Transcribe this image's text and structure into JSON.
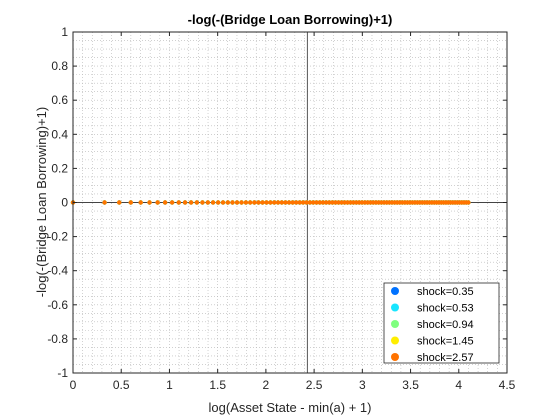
{
  "chart_data": {
    "type": "scatter",
    "title": "-log(-(Bridge Loan Borrowing)+1)",
    "xlabel": "log(Asset State - min(a) + 1)",
    "ylabel": "-log(-(Bridge Loan Borrowing)+1)",
    "xlim": [
      0,
      4.5
    ],
    "ylim": [
      -1,
      1
    ],
    "xticks": [
      "0",
      "0.5",
      "1",
      "1.5",
      "2",
      "2.5",
      "3",
      "3.5",
      "4",
      "4.5"
    ],
    "yticks": [
      "1",
      "0.8",
      "0.6",
      "0.4",
      "0.2",
      "0",
      "-0.2",
      "-0.4",
      "-0.6",
      "-0.8",
      "-1"
    ],
    "grid": "minor dotted",
    "legend_position": "bottom-right",
    "reference_lines": {
      "x": 2.43,
      "y": 0
    },
    "x_range_of_points": [
      0,
      4.1
    ],
    "series": [
      {
        "name": "shock=0.35",
        "color": "#0072ff",
        "values": [
          0
        ]
      },
      {
        "name": "shock=0.53",
        "color": "#19e5ff",
        "values": [
          0
        ]
      },
      {
        "name": "shock=0.94",
        "color": "#7fff7f",
        "values": [
          0
        ]
      },
      {
        "name": "shock=1.45",
        "color": "#ffee00",
        "values": [
          0
        ]
      },
      {
        "name": "shock=2.57",
        "color": "#ff7300",
        "values": [
          0
        ]
      }
    ]
  }
}
